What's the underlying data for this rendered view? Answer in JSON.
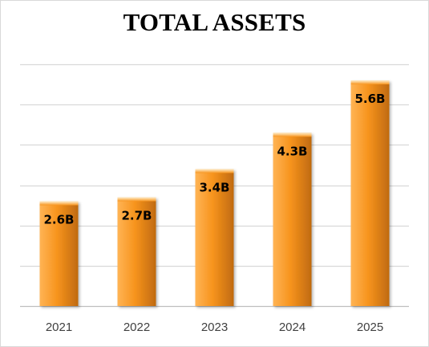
{
  "chart_data": {
    "type": "bar",
    "title": "TOTAL ASSETS",
    "xlabel": "",
    "ylabel": "",
    "categories": [
      "2021",
      "2022",
      "2023",
      "2024",
      "2025"
    ],
    "values": [
      2.6,
      2.7,
      3.4,
      4.3,
      5.6
    ],
    "data_labels": [
      "2.6B",
      "2.7B",
      "3.4B",
      "4.3B",
      "5.6B"
    ],
    "ylim": [
      0,
      6
    ],
    "y_gridlines": [
      0,
      1,
      2,
      3,
      4,
      5,
      6
    ],
    "y_tick_labels_shown": false,
    "grid": true,
    "legend": "none",
    "colors": {
      "bar_light": "#ffb455",
      "bar_main": "#f7941d",
      "bar_dark": "#c06a10",
      "gridline": "#d9d9d9",
      "axis": "#bfbfbf"
    }
  }
}
